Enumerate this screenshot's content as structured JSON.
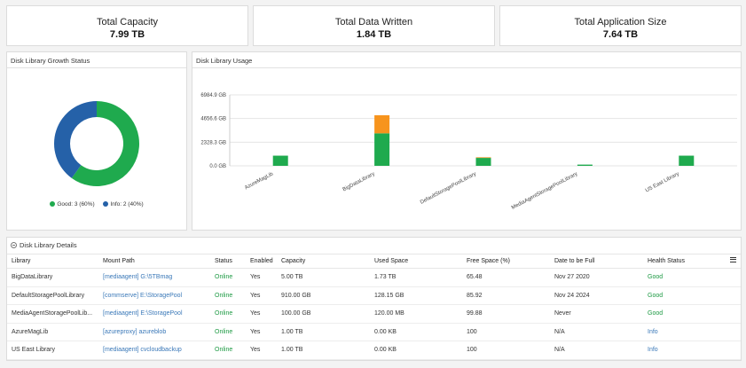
{
  "kpis": [
    {
      "label": "Total Capacity",
      "value": "7.99 TB"
    },
    {
      "label": "Total Data Written",
      "value": "1.84 TB"
    },
    {
      "label": "Total Application Size",
      "value": "7.64 TB"
    }
  ],
  "growth_panel": {
    "title": "Disk Library Growth Status",
    "legend": [
      {
        "label": "Good: 3 (60%)",
        "color": "#1faa4e",
        "value": 60
      },
      {
        "label": "Info: 2 (40%)",
        "color": "#2561a8",
        "value": 40
      }
    ]
  },
  "usage_panel": {
    "title": "Disk Library Usage"
  },
  "chart_data": [
    {
      "type": "pie",
      "title": "",
      "categories": [
        "Good",
        "Info"
      ],
      "values": [
        3,
        2
      ],
      "colors": [
        "#1faa4e",
        "#2561a8"
      ],
      "donut": true,
      "legend_position": "bottom"
    },
    {
      "type": "bar",
      "stacked": true,
      "title": "",
      "categories": [
        "AzureMagLib",
        "BigDataLibrary",
        "DefaultStoragePoolLibrary",
        "MediaAgentStoragePoolLibrary",
        "US East Library"
      ],
      "series": [
        {
          "color": "#1faa4e",
          "values": [
            1000,
            3200,
            780,
            120,
            1000
          ]
        },
        {
          "color": "#f7941d",
          "values": [
            0,
            1780,
            60,
            0,
            0
          ]
        }
      ],
      "yticks": [
        "6984.9 GB",
        "4656.6 GB",
        "2328.3 GB",
        "0.0 GB"
      ],
      "ylim": [
        0,
        6984.9
      ],
      "grid": true
    }
  ],
  "details": {
    "title": "Disk Library Details",
    "columns": [
      "Library",
      "Mount Path",
      "Status",
      "Enabled",
      "Capacity",
      "Used Space",
      "Free Space (%)",
      "Date to be Full",
      "Health Status"
    ],
    "rows": [
      [
        "BigDataLibrary",
        "[mediaagent] G:\\5TBmag",
        "Online",
        "Yes",
        "5.00 TB",
        "1.73 TB",
        "65.48",
        "Nov 27 2020",
        "Good"
      ],
      [
        "DefaultStoragePoolLibrary",
        "[commserve] E:\\StoragePool",
        "Online",
        "Yes",
        "910.00 GB",
        "128.15 GB",
        "85.92",
        "Nov 24 2024",
        "Good"
      ],
      [
        "MediaAgentStoragePoolLib...",
        "[mediaagent] E:\\StoragePool",
        "Online",
        "Yes",
        "100.00 GB",
        "120.00 MB",
        "99.88",
        "Never",
        "Good"
      ],
      [
        "AzureMagLib",
        "[azureproxy] azureblob",
        "Online",
        "Yes",
        "1.00 TB",
        "0.00 KB",
        "100",
        "N/A",
        "Info"
      ],
      [
        "US East Library",
        "[mediaagent] cvcloudbackup",
        "Online",
        "Yes",
        "1.00 TB",
        "0.00 KB",
        "100",
        "N/A",
        "Info"
      ]
    ]
  },
  "icons": {
    "collapse": "minus-circle-icon",
    "menu": "hamburger-menu-icon"
  }
}
